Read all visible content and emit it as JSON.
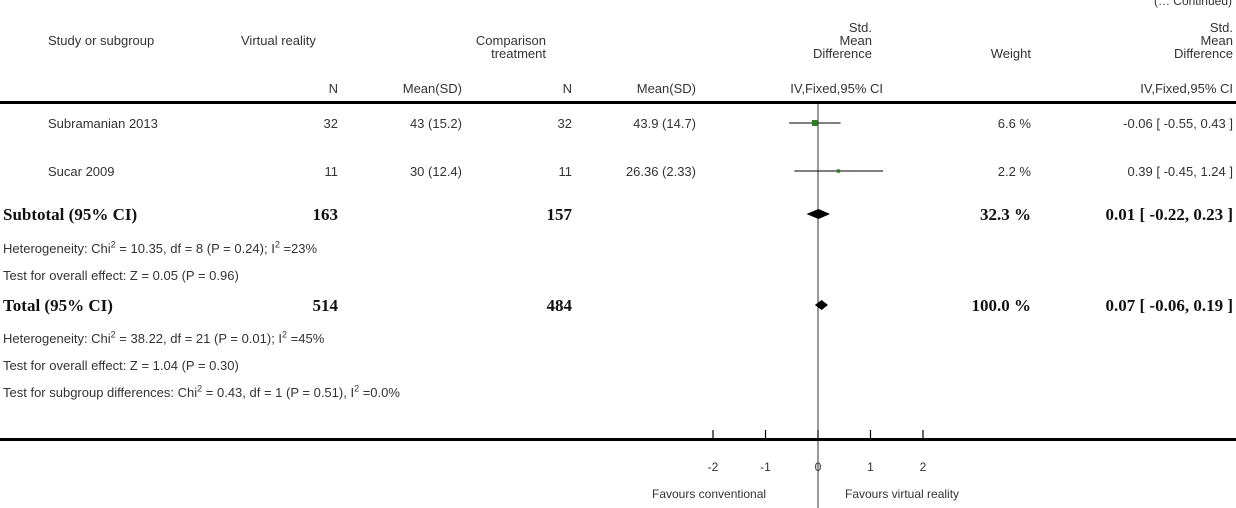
{
  "continued": "(… Continued)",
  "header": {
    "study": "Study or subgroup",
    "vr": "Virtual reality",
    "comp_line1": "Comparison",
    "comp_line2": "treatment",
    "smd_line1": "Std.",
    "smd_line2": "Mean",
    "smd_line3": "Difference",
    "weight": "Weight",
    "n": "N",
    "meansd": "Mean(SD)",
    "method": "IV,Fixed,95% CI"
  },
  "studies": [
    {
      "name": "Subramanian 2013",
      "vr_n": "32",
      "vr_mean": "43 (15.2)",
      "c_n": "32",
      "c_mean": "43.9 (14.7)",
      "weight": "6.6 %",
      "smd": "-0.06 [ -0.55, 0.43 ]"
    },
    {
      "name": "Sucar 2009",
      "vr_n": "11",
      "vr_mean": "30 (12.4)",
      "c_n": "11",
      "c_mean": "26.36 (2.33)",
      "weight": "2.2 %",
      "smd": "0.39 [ -0.45, 1.24 ]"
    }
  ],
  "subtotal": {
    "label": "Subtotal (95% CI)",
    "vr_n": "163",
    "c_n": "157",
    "weight": "32.3 %",
    "smd": "0.01 [ -0.22, 0.23 ]",
    "het_prefix": "Heterogeneity: Chi",
    "het_mid": " = 10.35, df = 8 (P = 0.24); I",
    "het_end": " =23%",
    "overall": "Test for overall effect: Z = 0.05 (P = 0.96)"
  },
  "total": {
    "label": "Total (95% CI)",
    "vr_n": "514",
    "c_n": "484",
    "weight": "100.0 %",
    "smd": "0.07 [ -0.06, 0.19 ]",
    "het_prefix": "Heterogeneity: Chi",
    "het_mid": " = 38.22, df = 21 (P = 0.01); I",
    "het_end": " =45%",
    "overall": "Test for overall effect: Z = 1.04 (P = 0.30)",
    "sub_prefix": "Test for subgroup differences: Chi",
    "sub_mid": " = 0.43, df = 1 (P = 0.51), I",
    "sub_end": " =0.0%"
  },
  "sup2": "2",
  "axis": {
    "favours_left": "Favours conventional",
    "favours_right": "Favours virtual reality"
  },
  "colors": {
    "study_marker": "#2e7d1f",
    "line": "#000000",
    "text": "#333333"
  },
  "chart_data": {
    "type": "forest",
    "xlim": [
      -2,
      2
    ],
    "ticks": [
      -2,
      -1,
      0,
      1,
      2
    ],
    "tick_labels": [
      "-2",
      "-1",
      "0",
      "1",
      "2"
    ],
    "studies": [
      {
        "name": "Subramanian 2013",
        "est": -0.06,
        "lo": -0.55,
        "hi": 0.43,
        "weight": 6.6
      },
      {
        "name": "Sucar 2009",
        "est": 0.39,
        "lo": -0.45,
        "hi": 1.24,
        "weight": 2.2
      }
    ],
    "pooled": [
      {
        "name": "Subtotal (95% CI)",
        "est": 0.01,
        "lo": -0.22,
        "hi": 0.23
      },
      {
        "name": "Total (95% CI)",
        "est": 0.07,
        "lo": -0.06,
        "hi": 0.19
      }
    ]
  }
}
